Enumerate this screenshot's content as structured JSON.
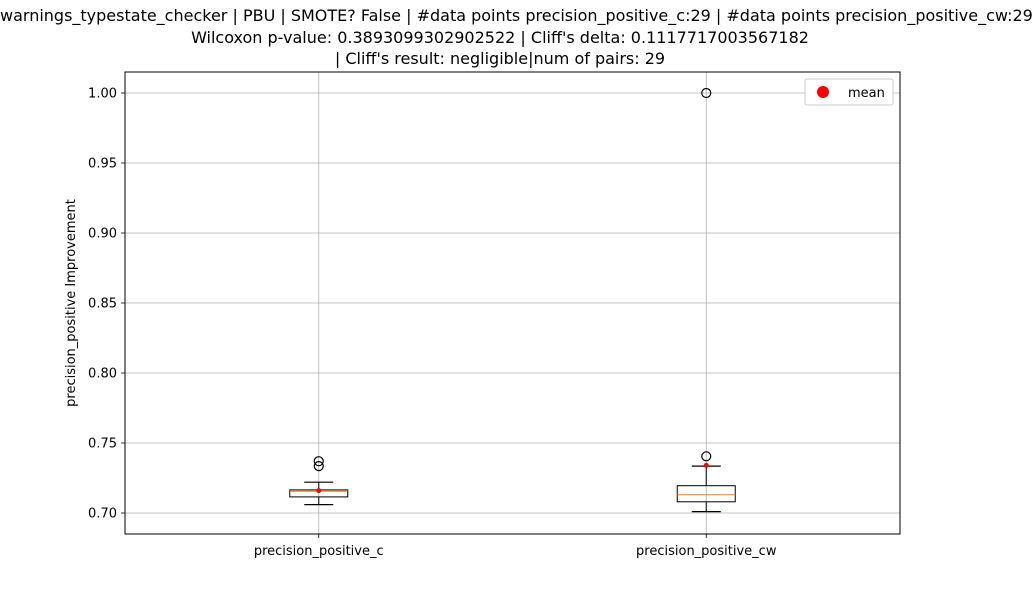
{
  "chart_data": {
    "type": "box",
    "title": [
      "warnings_typestate_checker | PBU | SMOTE? False | #data points precision_positive_c:29 | #data points precision_positive_cw:29",
      "Wilcoxon p-value: 0.3893099302902522 | Cliff's delta: 0.1117717003567182",
      "| Cliff's result: negligible|num of pairs: 29"
    ],
    "ylabel": "precision_positive Improvement",
    "xlabel": "",
    "ylim": [
      0.685,
      1.015
    ],
    "yticks": [
      "0.70",
      "0.75",
      "0.80",
      "0.85",
      "0.90",
      "0.95",
      "1.00"
    ],
    "grid": true,
    "legend": {
      "position": "top-right",
      "entries": [
        {
          "label": "mean",
          "color": "#ff0000",
          "marker": "circle"
        }
      ]
    },
    "categories": [
      "precision_positive_c",
      "precision_positive_cw"
    ],
    "boxes": [
      {
        "name": "precision_positive_c",
        "whisker_low": 0.706,
        "q1": 0.7115,
        "median": 0.7155,
        "q3": 0.7165,
        "whisker_high": 0.722,
        "mean": 0.716,
        "outliers": [
          0.7335,
          0.737
        ]
      },
      {
        "name": "precision_positive_cw",
        "whisker_low": 0.701,
        "q1": 0.708,
        "median": 0.713,
        "q3": 0.7195,
        "whisker_high": 0.7335,
        "mean": 0.734,
        "outliers": [
          0.7405,
          1.0
        ]
      }
    ],
    "colors": {
      "box": "#000000",
      "median": "#ff7f0e",
      "mean": "#ff0000",
      "grid": "#b0b0b0"
    }
  }
}
